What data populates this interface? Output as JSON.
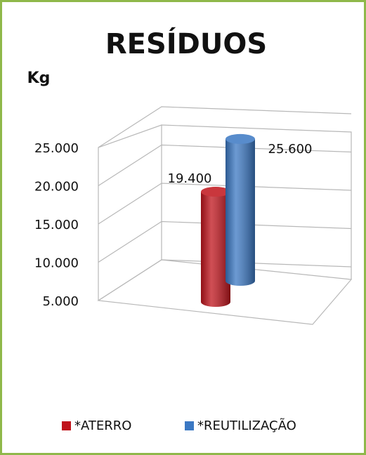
{
  "chart_data": {
    "type": "bar3d",
    "title": "RESÍDUOS",
    "y_label": "Kg",
    "categories": [
      null
    ],
    "series": [
      {
        "name": "*ATERRO",
        "color": "#c0141c",
        "values": [
          19400
        ],
        "value_labels": [
          "19.400"
        ]
      },
      {
        "name": "*REUTILIZAÇÃO",
        "color": "#3b78c3",
        "values": [
          25600
        ],
        "value_labels": [
          "25.600"
        ]
      }
    ],
    "ylim": [
      5000,
      25000
    ],
    "yticks": [
      {
        "value": 5000,
        "label": "5.000"
      },
      {
        "value": 10000,
        "label": "10.000"
      },
      {
        "value": 15000,
        "label": "15.000"
      },
      {
        "value": 20000,
        "label": "20.000"
      },
      {
        "value": 25000,
        "label": "25.000"
      }
    ],
    "grid": true,
    "legend": "bottom"
  }
}
